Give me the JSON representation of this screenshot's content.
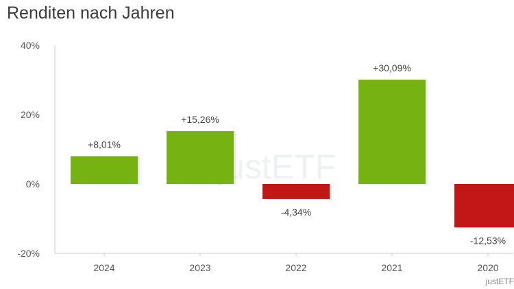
{
  "header": {
    "title": "Renditen nach Jahren"
  },
  "watermark": "justETF",
  "credit": "justETF",
  "colors": {
    "positive": "#76b312",
    "negative": "#c21717",
    "axis": "#cccccc",
    "tick_text": "#555555",
    "label_text": "#444444"
  },
  "chart_data": {
    "type": "bar",
    "title": "Renditen nach Jahren",
    "categories": [
      "2024",
      "2023",
      "2022",
      "2021",
      "2020"
    ],
    "values": [
      8.01,
      15.26,
      -4.34,
      30.09,
      -12.53
    ],
    "data_labels": [
      "+8,01%",
      "+15,26%",
      "-4,34%",
      "+30,09%",
      "-12,53%"
    ],
    "ylim": [
      -20,
      40
    ],
    "yticks": [
      40,
      20,
      0,
      -20
    ],
    "ytick_labels": [
      "40%",
      "20%",
      "0%",
      "-20%"
    ],
    "xlabel": "",
    "ylabel": "",
    "grid": false,
    "legend": "none"
  }
}
